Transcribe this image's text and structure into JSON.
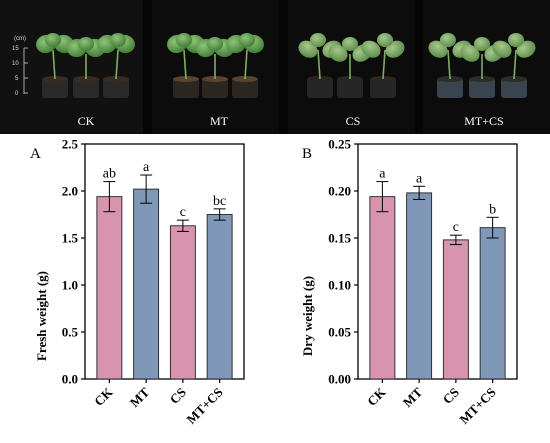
{
  "photo_strip": {
    "scale": {
      "unit": "(cm)",
      "ticks": [
        "15",
        "10",
        "5",
        "0"
      ]
    },
    "labels": [
      "CK",
      "MT",
      "CS",
      "MT+CS"
    ]
  },
  "chart_data": [
    {
      "type": "bar",
      "panel": "A",
      "title": "",
      "xlabel": "",
      "ylabel": "Fresh weight (g)",
      "ylim": [
        0,
        2.5
      ],
      "yticks": [
        "0.0",
        "0.5",
        "1.0",
        "1.5",
        "2.0",
        "2.5"
      ],
      "categories": [
        "CK",
        "MT",
        "CS",
        "MT+CS"
      ],
      "values": [
        1.94,
        2.02,
        1.63,
        1.75
      ],
      "errors": [
        0.16,
        0.15,
        0.06,
        0.06
      ],
      "significance": [
        "ab",
        "a",
        "c",
        "bc"
      ],
      "colors": [
        "#d794ae",
        "#7f98b8",
        "#d794ae",
        "#7f98b8"
      ]
    },
    {
      "type": "bar",
      "panel": "B",
      "title": "",
      "xlabel": "",
      "ylabel": "Dry weight (g)",
      "ylim": [
        0,
        0.25
      ],
      "yticks": [
        "0.00",
        "0.05",
        "0.10",
        "0.15",
        "0.20",
        "0.25"
      ],
      "categories": [
        "CK",
        "MT",
        "CS",
        "MT+CS"
      ],
      "values": [
        0.194,
        0.198,
        0.148,
        0.161
      ],
      "errors": [
        0.016,
        0.007,
        0.005,
        0.011
      ],
      "significance": [
        "a",
        "a",
        "c",
        "b"
      ],
      "colors": [
        "#d794ae",
        "#7f98b8",
        "#d794ae",
        "#7f98b8"
      ]
    }
  ]
}
